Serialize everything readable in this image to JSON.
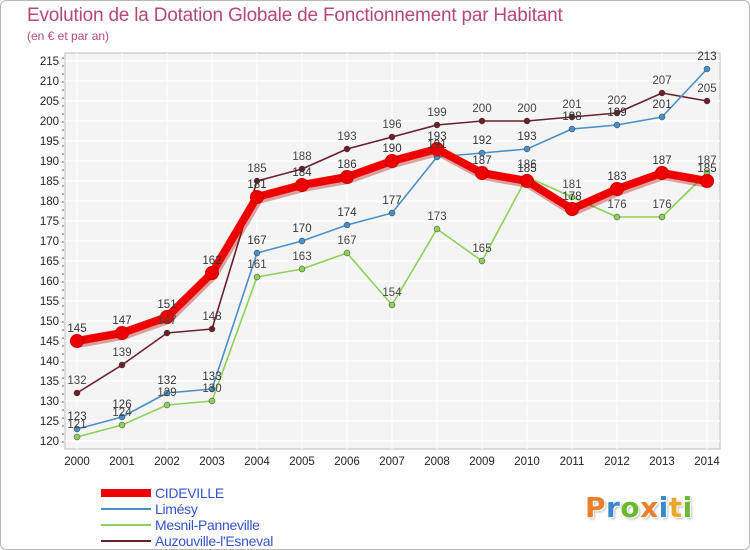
{
  "header": {
    "title": "Evolution de la Dotation Globale de Fonctionnement par Habitant",
    "subtitle": "(en € et par an)"
  },
  "logo": {
    "text": "Proxiti",
    "colors": [
      "#e8812a",
      "#3a89d0",
      "#6cb92e",
      "#e8812a",
      "#3a89d0",
      "#e8a72a",
      "#6cb92e"
    ]
  },
  "chart_data": {
    "type": "line",
    "title": "Evolution de la Dotation Globale de Fonctionnement par Habitant",
    "ylabel": "(en € et par an)",
    "xlabel": "",
    "x": [
      "2000",
      "2001",
      "2002",
      "2003",
      "2004",
      "2005",
      "2006",
      "2007",
      "2008",
      "2009",
      "2010",
      "2011",
      "2012",
      "2013",
      "2014"
    ],
    "ylim": [
      120,
      215
    ],
    "yticks": [
      120,
      125,
      130,
      135,
      140,
      145,
      150,
      155,
      160,
      165,
      170,
      175,
      180,
      185,
      190,
      195,
      200,
      205,
      210,
      215
    ],
    "grid": true,
    "legend_position": "bottom-left",
    "series": [
      {
        "name": "Auzouville-l'Esneval",
        "color": "#6b1f2a",
        "emphasis": false,
        "values": [
          132,
          139,
          147,
          148,
          185,
          188,
          193,
          196,
          199,
          200,
          200,
          201,
          202,
          207,
          205
        ]
      },
      {
        "name": "Limésy",
        "color": "#4a90c8",
        "emphasis": false,
        "values": [
          123,
          126,
          132,
          133,
          167,
          170,
          174,
          177,
          191,
          192,
          193,
          198,
          199,
          201,
          213
        ]
      },
      {
        "name": "Mesnil-Panneville",
        "color": "#8ed05a",
        "emphasis": false,
        "values": [
          121,
          124,
          129,
          130,
          161,
          163,
          167,
          154,
          173,
          165,
          186,
          181,
          176,
          176,
          187
        ]
      },
      {
        "name": "CIDEVILLE",
        "color": "#ee0000",
        "emphasis": true,
        "values": [
          145,
          147,
          151,
          162,
          181,
          184,
          186,
          190,
          193,
          187,
          185,
          178,
          183,
          187,
          185
        ]
      }
    ],
    "legend_order": [
      "CIDEVILLE",
      "Limésy",
      "Mesnil-Panneville",
      "Auzouville-l'Esneval"
    ]
  }
}
